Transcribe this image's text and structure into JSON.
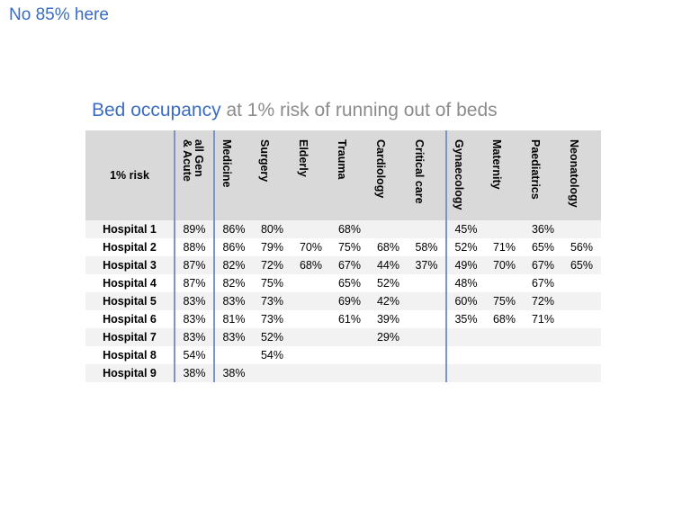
{
  "slide_title": "No 85% here",
  "table_title": {
    "highlight": "Bed occupancy",
    "rest": " at 1% risk of running out of beds"
  },
  "colors": {
    "accent_blue": "#3a6cc4",
    "separator_blue": "#7b95c7",
    "header_bg": "#d9d9d9",
    "stripe_bg": "#f2f2f2",
    "title_gray": "#8c8c8c"
  },
  "table": {
    "corner_label": "1% risk",
    "columns": [
      "all Gen\n& Acute",
      "Medicine",
      "Surgery",
      "Elderly",
      "Trauma",
      "Cardiology",
      "Critical care",
      "Gynaecology",
      "Maternity",
      "Paediatrics",
      "Neonatology"
    ],
    "rows": [
      {
        "label": "Hospital 1",
        "cells": [
          "89%",
          "86%",
          "80%",
          "",
          "68%",
          "",
          "",
          "45%",
          "",
          "36%",
          ""
        ]
      },
      {
        "label": "Hospital 2",
        "cells": [
          "88%",
          "86%",
          "79%",
          "70%",
          "75%",
          "68%",
          "58%",
          "52%",
          "71%",
          "65%",
          "56%"
        ]
      },
      {
        "label": "Hospital 3",
        "cells": [
          "87%",
          "82%",
          "72%",
          "68%",
          "67%",
          "44%",
          "37%",
          "49%",
          "70%",
          "67%",
          "65%"
        ]
      },
      {
        "label": "Hospital 4",
        "cells": [
          "87%",
          "82%",
          "75%",
          "",
          "65%",
          "52%",
          "",
          "48%",
          "",
          "67%",
          ""
        ]
      },
      {
        "label": "Hospital 5",
        "cells": [
          "83%",
          "83%",
          "73%",
          "",
          "69%",
          "42%",
          "",
          "60%",
          "75%",
          "72%",
          ""
        ]
      },
      {
        "label": "Hospital 6",
        "cells": [
          "83%",
          "81%",
          "73%",
          "",
          "61%",
          "39%",
          "",
          "35%",
          "68%",
          "71%",
          ""
        ]
      },
      {
        "label": "Hospital 7",
        "cells": [
          "83%",
          "83%",
          "52%",
          "",
          "",
          "29%",
          "",
          "",
          "",
          "",
          ""
        ]
      },
      {
        "label": "Hospital 8",
        "cells": [
          "54%",
          "",
          "54%",
          "",
          "",
          "",
          "",
          "",
          "",
          "",
          ""
        ]
      },
      {
        "label": "Hospital 9",
        "cells": [
          "38%",
          "38%",
          "",
          "",
          "",
          "",
          "",
          "",
          "",
          "",
          ""
        ]
      }
    ]
  }
}
